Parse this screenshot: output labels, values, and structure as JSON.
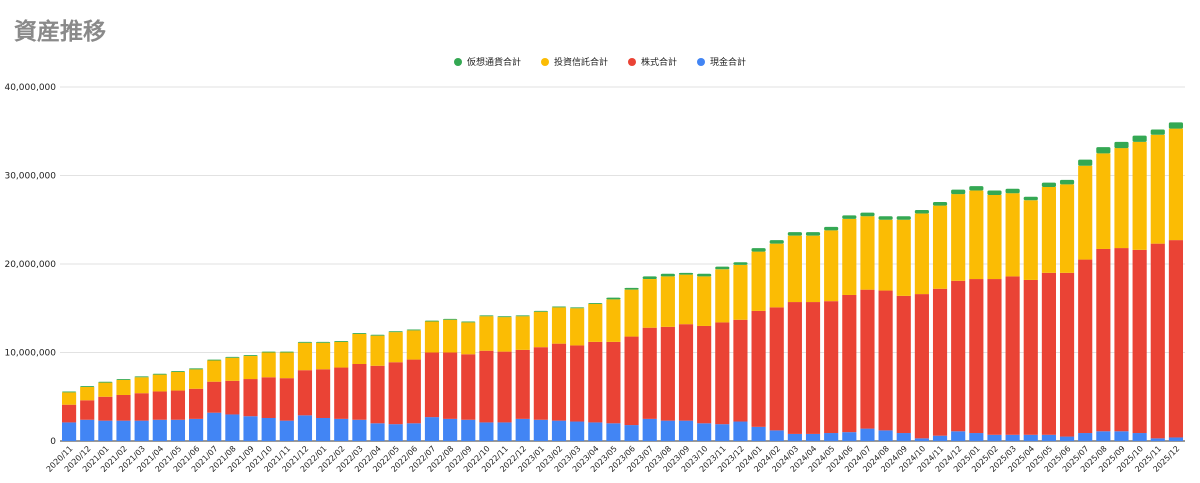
{
  "title": "資産推移",
  "chart_data": {
    "type": "bar",
    "stacked": true,
    "title": "資産推移",
    "xlabel": "",
    "ylabel": "",
    "ylim": [
      0,
      40000000
    ],
    "yticks": [
      "0",
      "10,000,000",
      "20,000,000",
      "30,000,000",
      "40,000,000"
    ],
    "ytick_values": [
      0,
      10000000,
      20000000,
      30000000,
      40000000
    ],
    "grid": true,
    "legend_position": "top-center",
    "categories": [
      "2020/11",
      "2020/12",
      "2021/01",
      "2021/02",
      "2021/03",
      "2021/04",
      "2021/05",
      "2021/06",
      "2021/07",
      "2021/08",
      "2021/09",
      "2021/10",
      "2021/11",
      "2021/12",
      "2022/01",
      "2022/02",
      "2022/03",
      "2022/04",
      "2022/05",
      "2022/06",
      "2022/07",
      "2022/08",
      "2022/09",
      "2022/10",
      "2022/11",
      "2022/12",
      "2023/01",
      "2023/02",
      "2023/03",
      "2023/04",
      "2023/05",
      "2023/06",
      "2023/07",
      "2023/08",
      "2023/09",
      "2023/10",
      "2023/11",
      "2023/12",
      "2024/01",
      "2024/02",
      "2024/03",
      "2024/04",
      "2024/05",
      "2024/06",
      "2024/07",
      "2024/08",
      "2024/09",
      "2024/10",
      "2024/11",
      "2024/12",
      "2025/01",
      "2025/02",
      "2025/03",
      "2025/04",
      "2025/05",
      "2025/06",
      "2025/07",
      "2025/08",
      "2025/09",
      "2025/10",
      "2025/11",
      "2025/12"
    ],
    "x_tick_labels": [
      "2020/11",
      "2020/12",
      "2021/01",
      "2021/02",
      "2021/03",
      "2021/04",
      "2021/05",
      "2021/06",
      "2021/07",
      "2021/08",
      "2021/09",
      "2021/10",
      "2021/11",
      "2021/12",
      "2022/01",
      "2022/02",
      "2022/03",
      "2022/04",
      "2022/05",
      "2022/06",
      "2022/07",
      "2022/08",
      "2022/09",
      "2022/10",
      "2022/11",
      "2022/12",
      "2023/01",
      "2023/02",
      "2023/03",
      "2023/04",
      "2023/05",
      "2023/06",
      "2023/07",
      "2023/08",
      "2023/09",
      "2023/10",
      "2023/11",
      "2023/12",
      "2024/01",
      "2024/02",
      "2024/03",
      "2024/04",
      "2024/05",
      "2024/06",
      "2024/07",
      "2024/08",
      "2024/09",
      "2024/10",
      "2024/11",
      "2024/12",
      "2025/01",
      "2025/02",
      "2025/03",
      "2025/04",
      "2025/05",
      "2025/06",
      "2025/07",
      "2025/08",
      "2025/09",
      "2025/10",
      "2025/11",
      "2025/12"
    ],
    "series": [
      {
        "name": "現金合計",
        "color": "#4285f4",
        "values": [
          2100000,
          2400000,
          2300000,
          2300000,
          2300000,
          2400000,
          2400000,
          2500000,
          3200000,
          3000000,
          2800000,
          2600000,
          2300000,
          2900000,
          2600000,
          2500000,
          2400000,
          2000000,
          1900000,
          2000000,
          2700000,
          2500000,
          2400000,
          2100000,
          2100000,
          2500000,
          2400000,
          2300000,
          2200000,
          2100000,
          2000000,
          1800000,
          2500000,
          2300000,
          2300000,
          2000000,
          1900000,
          2200000,
          1600000,
          1200000,
          800000,
          800000,
          900000,
          1000000,
          1400000,
          1200000,
          900000,
          300000,
          600000,
          1100000,
          900000,
          700000,
          700000,
          700000,
          700000,
          500000,
          900000,
          1100000,
          1100000,
          900000,
          300000,
          400000
        ]
      },
      {
        "name": "株式合計",
        "color": "#ea4335",
        "values": [
          2000000,
          2200000,
          2700000,
          2900000,
          3100000,
          3200000,
          3300000,
          3400000,
          3500000,
          3800000,
          4200000,
          4600000,
          4800000,
          5100000,
          5500000,
          5800000,
          6300000,
          6500000,
          7000000,
          7200000,
          7300000,
          7500000,
          7400000,
          8100000,
          8000000,
          7800000,
          8200000,
          8700000,
          8600000,
          9100000,
          9200000,
          10000000,
          10300000,
          10600000,
          10900000,
          11000000,
          11500000,
          11500000,
          13100000,
          13900000,
          14900000,
          14900000,
          14900000,
          15500000,
          15700000,
          15800000,
          15500000,
          16300000,
          16600000,
          17000000,
          17400000,
          17600000,
          17900000,
          17500000,
          18300000,
          18500000,
          19600000,
          20600000,
          20700000,
          20700000,
          22000000,
          22300000
        ]
      },
      {
        "name": "投資信託合計",
        "color": "#fbbc04",
        "values": [
          1400000,
          1500000,
          1600000,
          1700000,
          1800000,
          1900000,
          2100000,
          2200000,
          2400000,
          2600000,
          2600000,
          2800000,
          2900000,
          3100000,
          3000000,
          2900000,
          3400000,
          3400000,
          3400000,
          3300000,
          3500000,
          3700000,
          3600000,
          3900000,
          3900000,
          3800000,
          4000000,
          4100000,
          4200000,
          4300000,
          4800000,
          5300000,
          5500000,
          5700000,
          5600000,
          5600000,
          6000000,
          6200000,
          6700000,
          7200000,
          7500000,
          7500000,
          8000000,
          8600000,
          8300000,
          8000000,
          8600000,
          9100000,
          9400000,
          9800000,
          10000000,
          9500000,
          9400000,
          9000000,
          9700000,
          10000000,
          10600000,
          10800000,
          11300000,
          12200000,
          12300000,
          12600000
        ]
      },
      {
        "name": "仮想通貨合計",
        "color": "#34a853",
        "values": [
          100000,
          100000,
          100000,
          100000,
          100000,
          100000,
          100000,
          100000,
          100000,
          100000,
          100000,
          100000,
          100000,
          100000,
          100000,
          100000,
          100000,
          100000,
          100000,
          100000,
          100000,
          100000,
          100000,
          100000,
          100000,
          100000,
          100000,
          100000,
          100000,
          100000,
          200000,
          200000,
          300000,
          300000,
          200000,
          300000,
          300000,
          300000,
          400000,
          400000,
          400000,
          400000,
          400000,
          400000,
          400000,
          400000,
          400000,
          400000,
          400000,
          500000,
          500000,
          500000,
          500000,
          400000,
          500000,
          500000,
          700000,
          700000,
          700000,
          700000,
          600000,
          700000
        ]
      }
    ]
  }
}
